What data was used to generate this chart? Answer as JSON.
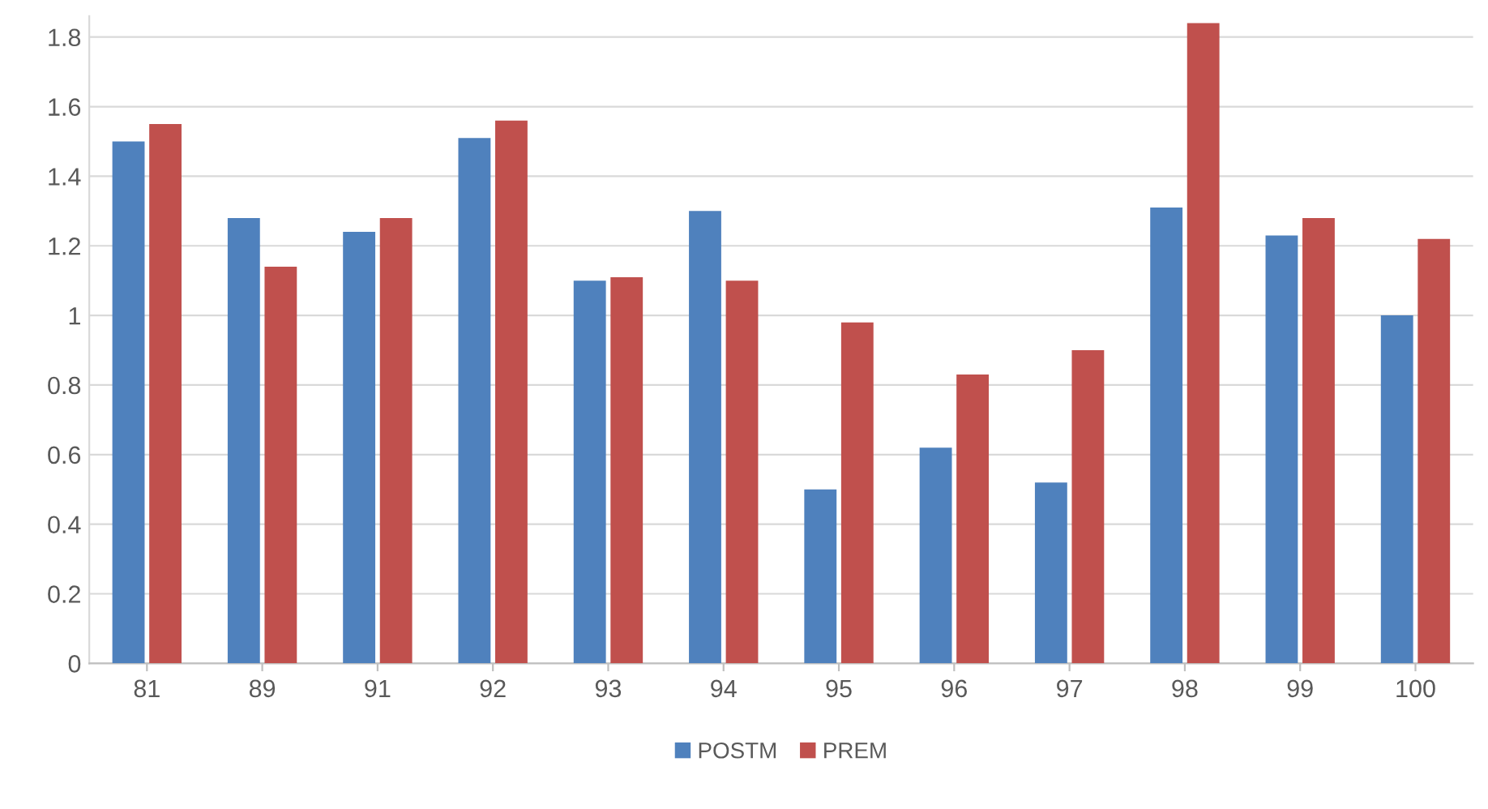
{
  "chart_data": {
    "type": "bar",
    "categories": [
      "81",
      "89",
      "91",
      "92",
      "93",
      "94",
      "95",
      "96",
      "97",
      "98",
      "99",
      "100"
    ],
    "series": [
      {
        "name": "POSTM",
        "color": "#4f81bd",
        "values": [
          1.5,
          1.28,
          1.24,
          1.51,
          1.1,
          1.3,
          0.5,
          0.62,
          0.52,
          1.31,
          1.23,
          1.0
        ]
      },
      {
        "name": "PREM",
        "color": "#c0504d",
        "values": [
          1.55,
          1.14,
          1.28,
          1.56,
          1.11,
          1.1,
          0.98,
          0.83,
          0.9,
          1.84,
          1.28,
          1.22
        ]
      }
    ],
    "ylim": [
      0,
      1.86
    ],
    "yticks": [
      0,
      0.2,
      0.4,
      0.6,
      0.8,
      1,
      1.2,
      1.4,
      1.6,
      1.8
    ],
    "grid": "y",
    "legend": "bottom"
  }
}
